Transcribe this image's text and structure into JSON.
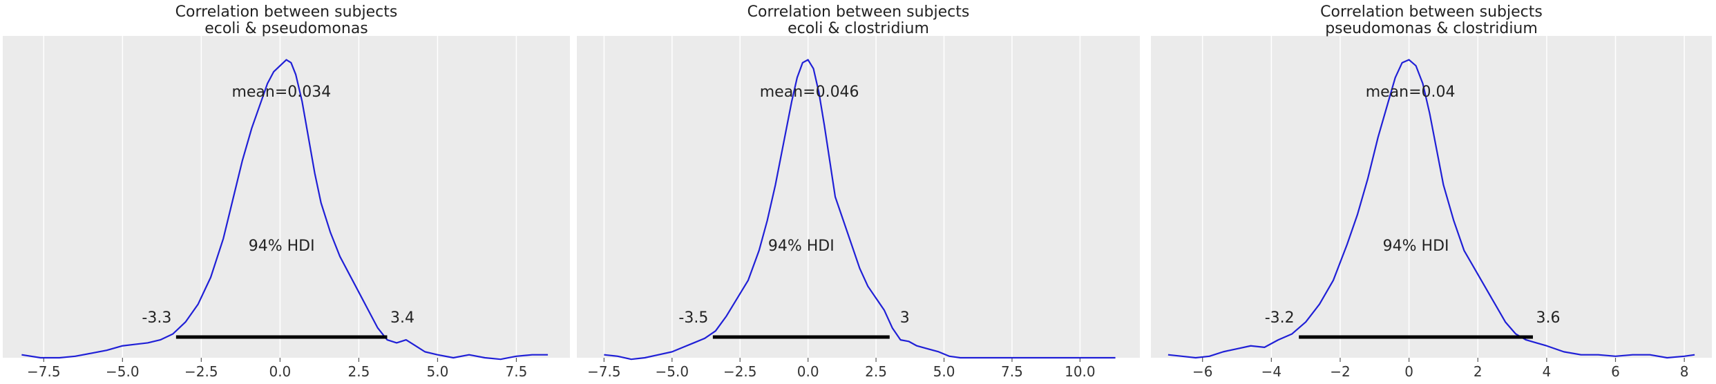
{
  "chart_data": [
    {
      "type": "line",
      "title": "Correlation between subjects\necoli & pseudomonas",
      "xlim": [
        -8.8,
        9.2
      ],
      "ylim": [
        0,
        1.08
      ],
      "xticks": [
        -7.5,
        -5.0,
        -2.5,
        0.0,
        2.5,
        5.0,
        7.5
      ],
      "xtick_labels": [
        "−7.5",
        "−5.0",
        "−2.5",
        "0.0",
        "2.5",
        "5.0",
        "7.5"
      ],
      "grid": true,
      "series": [
        {
          "color": "#1f1fd6",
          "x": [
            -8.2,
            -7.6,
            -7.0,
            -6.5,
            -6.0,
            -5.5,
            -5.0,
            -4.6,
            -4.2,
            -3.8,
            -3.4,
            -3.0,
            -2.6,
            -2.2,
            -1.8,
            -1.5,
            -1.2,
            -0.9,
            -0.6,
            -0.4,
            -0.2,
            0.0,
            0.2,
            0.35,
            0.5,
            0.7,
            0.9,
            1.1,
            1.3,
            1.6,
            1.9,
            2.2,
            2.5,
            2.8,
            3.1,
            3.4,
            3.7,
            4.0,
            4.3,
            4.6,
            5.0,
            5.5,
            6.0,
            6.5,
            7.0,
            7.5,
            8.0,
            8.5
          ],
          "y": [
            0.01,
            0.0,
            0.0,
            0.005,
            0.015,
            0.025,
            0.04,
            0.045,
            0.05,
            0.06,
            0.08,
            0.12,
            0.18,
            0.27,
            0.4,
            0.53,
            0.66,
            0.77,
            0.86,
            0.92,
            0.96,
            0.98,
            1.0,
            0.99,
            0.95,
            0.86,
            0.74,
            0.62,
            0.52,
            0.42,
            0.34,
            0.28,
            0.22,
            0.16,
            0.1,
            0.06,
            0.05,
            0.06,
            0.04,
            0.02,
            0.01,
            0.0,
            0.01,
            0.0,
            -0.005,
            0.005,
            0.01,
            0.01
          ]
        }
      ],
      "annotations": {
        "mean_label": "mean=0.034",
        "hdi_label": "94% HDI",
        "hdi_low": -3.3,
        "hdi_high": 3.4,
        "hdi_low_label": "-3.3",
        "hdi_high_label": "3.4"
      }
    },
    {
      "type": "line",
      "title": "Correlation between subjects\necoli & clostridium",
      "xlim": [
        -8.5,
        12.2
      ],
      "ylim": [
        0,
        1.08
      ],
      "xticks": [
        -7.5,
        -5.0,
        -2.5,
        0.0,
        2.5,
        5.0,
        7.5,
        10.0
      ],
      "xtick_labels": [
        "−7.5",
        "−5.0",
        "−2.5",
        "0.0",
        "2.5",
        "5.0",
        "7.5",
        "10.0"
      ],
      "grid": true,
      "series": [
        {
          "color": "#1f1fd6",
          "x": [
            -7.5,
            -7.0,
            -6.5,
            -6.0,
            -5.5,
            -5.0,
            -4.6,
            -4.2,
            -3.8,
            -3.4,
            -3.0,
            -2.6,
            -2.2,
            -1.8,
            -1.5,
            -1.2,
            -0.9,
            -0.6,
            -0.4,
            -0.2,
            0.0,
            0.2,
            0.4,
            0.6,
            0.8,
            1.0,
            1.3,
            1.6,
            1.9,
            2.2,
            2.5,
            2.8,
            3.1,
            3.4,
            3.7,
            4.0,
            4.4,
            4.8,
            5.2,
            5.6,
            6.0,
            7.0,
            8.0,
            9.0,
            10.0,
            11.0,
            11.3
          ],
          "y": [
            0.01,
            0.005,
            -0.005,
            0.0,
            0.01,
            0.02,
            0.035,
            0.05,
            0.065,
            0.09,
            0.14,
            0.2,
            0.26,
            0.36,
            0.46,
            0.58,
            0.72,
            0.86,
            0.94,
            0.99,
            1.0,
            0.97,
            0.89,
            0.78,
            0.66,
            0.54,
            0.46,
            0.38,
            0.3,
            0.24,
            0.2,
            0.16,
            0.1,
            0.06,
            0.055,
            0.04,
            0.03,
            0.02,
            0.005,
            0.0,
            0.0,
            0.0,
            0.0,
            0.0,
            0.0,
            0.0,
            0.0
          ]
        }
      ],
      "annotations": {
        "mean_label": "mean=0.046",
        "hdi_label": "94% HDI",
        "hdi_low": -3.5,
        "hdi_high": 3.0,
        "hdi_low_label": "-3.5",
        "hdi_high_label": "3"
      }
    },
    {
      "type": "line",
      "title": "Correlation between subjects\npseudomonas & clostridium",
      "xlim": [
        -7.5,
        8.8
      ],
      "ylim": [
        0,
        1.08
      ],
      "xticks": [
        -6,
        -4,
        -2,
        0,
        2,
        4,
        6,
        8
      ],
      "xtick_labels": [
        "−6",
        "−4",
        "−2",
        "0",
        "2",
        "4",
        "6",
        "8"
      ],
      "grid": true,
      "series": [
        {
          "color": "#1f1fd6",
          "x": [
            -7.0,
            -6.6,
            -6.2,
            -5.8,
            -5.4,
            -5.0,
            -4.6,
            -4.2,
            -3.8,
            -3.4,
            -3.0,
            -2.6,
            -2.2,
            -1.8,
            -1.5,
            -1.2,
            -0.9,
            -0.6,
            -0.4,
            -0.2,
            0.0,
            0.2,
            0.4,
            0.6,
            0.8,
            1.0,
            1.3,
            1.6,
            1.9,
            2.2,
            2.5,
            2.8,
            3.1,
            3.4,
            3.7,
            4.0,
            4.5,
            5.0,
            5.5,
            6.0,
            6.5,
            7.0,
            7.5,
            8.0,
            8.3
          ],
          "y": [
            0.01,
            0.005,
            0.0,
            0.005,
            0.02,
            0.03,
            0.04,
            0.035,
            0.06,
            0.08,
            0.12,
            0.18,
            0.26,
            0.38,
            0.48,
            0.6,
            0.74,
            0.86,
            0.94,
            0.99,
            1.0,
            0.98,
            0.92,
            0.82,
            0.7,
            0.58,
            0.46,
            0.36,
            0.3,
            0.24,
            0.18,
            0.12,
            0.08,
            0.06,
            0.05,
            0.04,
            0.02,
            0.01,
            0.01,
            0.005,
            0.01,
            0.01,
            0.0,
            0.005,
            0.01
          ]
        }
      ],
      "annotations": {
        "mean_label": "mean=0.04",
        "hdi_label": "94% HDI",
        "hdi_low": -3.2,
        "hdi_high": 3.6,
        "hdi_low_label": "-3.2",
        "hdi_high_label": "3.6"
      }
    }
  ]
}
